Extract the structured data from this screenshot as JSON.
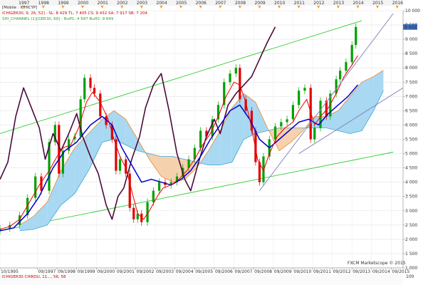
{
  "chart_data": {
    "type": "line",
    "title": "",
    "xlabel": "",
    "ylabel": "",
    "legend_placement": "top-left",
    "grid": true,
    "ylim": [
      1000,
      10000
    ],
    "xlim": [
      1995.8,
      2016.3
    ],
    "y_ticks": [
      1000,
      1500,
      2000,
      2500,
      3000,
      3500,
      4000,
      4500,
      5000,
      5500,
      6000,
      6500,
      7000,
      7500,
      8000,
      8500,
      9000,
      9500,
      10000
    ],
    "y_tick_labels": [
      "1 000",
      "1 500",
      "2 000",
      "2 500",
      "3 000",
      "3 500",
      "4 000",
      "4 500",
      "5 000",
      "5 500",
      "6 000",
      "6 500",
      "7 000",
      "7 500",
      "8 000",
      "8 500",
      "9 000",
      "9 500",
      "10 000"
    ],
    "top_year_ticks": [
      1997,
      1998,
      1999,
      2000,
      2001,
      2002,
      2003,
      2004,
      2005,
      2006,
      2007,
      2008,
      2009,
      2010,
      2011,
      2012,
      2013,
      2014,
      2015,
      2016
    ],
    "bottom_ticks": [
      {
        "x": 1995.8,
        "label": "10/1995"
      },
      {
        "x": 1997.7,
        "label": "09/1997"
      },
      {
        "x": 1998.7,
        "label": "09/1998"
      },
      {
        "x": 1999.7,
        "label": "09/1999"
      },
      {
        "x": 2000.7,
        "label": "09/2000"
      },
      {
        "x": 2001.7,
        "label": "09/2001"
      },
      {
        "x": 2002.7,
        "label": "09/2002"
      },
      {
        "x": 2003.7,
        "label": "09/2003"
      },
      {
        "x": 2004.7,
        "label": "09/2004"
      },
      {
        "x": 2005.7,
        "label": "09/2005"
      },
      {
        "x": 2006.7,
        "label": "09/2006"
      },
      {
        "x": 2007.7,
        "label": "09/2007"
      },
      {
        "x": 2008.7,
        "label": "09/2008"
      },
      {
        "x": 2009.7,
        "label": "09/2009"
      },
      {
        "x": 2010.7,
        "label": "09/2010"
      },
      {
        "x": 2011.7,
        "label": "09/2011"
      },
      {
        "x": 2012.7,
        "label": "09/2012"
      },
      {
        "x": 2013.7,
        "label": "09/2013"
      },
      {
        "x": 2014.7,
        "label": "09/2014"
      },
      {
        "x": 2015.7,
        "label": "09/2015"
      }
    ],
    "legend": [
      {
        "text": "[Mobile : ICHICYP]",
        "color": "#222222"
      },
      {
        "text": "ICHIGER30, 9, 26, 52]  -  SL: 8 429  TL: 7 405  CS: 9 432  SA: 7 917  SB: 7 204",
        "color": "#cc0000"
      },
      {
        "text": "SHI_CHANNEL (1)[GER30, 60]  -  Buff1: 4 697  Buff2: 9 649",
        "color": "#22aa22"
      }
    ],
    "last_price": 9432,
    "last_price_label": "9 432",
    "price_badge_color": "#3a6ec0",
    "colors": {
      "up": "#00a000",
      "down": "#e00000",
      "tenkan": "#ee0000",
      "kijun": "#0000cc",
      "chikou": "#4b0a3c",
      "cloud_bull": "#a9d8f2",
      "cloud_bull_edge": "#38a6d8",
      "cloud_bear": "#f6d1ad",
      "cloud_bear_edge": "#ee8a2e",
      "channel": "#33cc33",
      "trend": "#8888bb"
    },
    "candles": [
      [
        1995.8,
        2300,
        2380
      ],
      [
        1996.3,
        2380,
        2500
      ],
      [
        1996.8,
        2500,
        2840
      ],
      [
        1997.2,
        2840,
        3450
      ],
      [
        1997.6,
        3450,
        4200
      ],
      [
        1997.9,
        4200,
        3700
      ],
      [
        1998.3,
        3700,
        5400
      ],
      [
        1998.6,
        5400,
        6000
      ],
      [
        1998.8,
        6000,
        4300
      ],
      [
        1999.0,
        4300,
        5100
      ],
      [
        1999.3,
        5100,
        5500
      ],
      [
        1999.6,
        5500,
        5600
      ],
      [
        1999.9,
        5600,
        6900
      ],
      [
        2000.1,
        6900,
        7650
      ],
      [
        2000.4,
        7650,
        7300
      ],
      [
        2000.6,
        7300,
        7100
      ],
      [
        2000.9,
        7100,
        6300
      ],
      [
        2001.2,
        6300,
        6000
      ],
      [
        2001.5,
        6000,
        5500
      ],
      [
        2001.7,
        5500,
        4400
      ],
      [
        2001.9,
        4400,
        4800
      ],
      [
        2002.2,
        4800,
        4300
      ],
      [
        2002.4,
        4300,
        3100
      ],
      [
        2002.6,
        3100,
        2700
      ],
      [
        2002.8,
        2700,
        2900
      ],
      [
        2003.0,
        2900,
        2600
      ],
      [
        2003.3,
        2600,
        3300
      ],
      [
        2003.6,
        3300,
        3700
      ],
      [
        2003.9,
        3700,
        4000
      ],
      [
        2004.2,
        4000,
        3900
      ],
      [
        2004.5,
        3900,
        4000
      ],
      [
        2004.8,
        4000,
        4200
      ],
      [
        2005.1,
        4200,
        4500
      ],
      [
        2005.4,
        4500,
        4800
      ],
      [
        2005.7,
        4800,
        5200
      ],
      [
        2006.0,
        5200,
        5800
      ],
      [
        2006.3,
        5800,
        5600
      ],
      [
        2006.6,
        5600,
        6200
      ],
      [
        2006.9,
        6200,
        6700
      ],
      [
        2007.2,
        6700,
        7500
      ],
      [
        2007.5,
        7500,
        7800
      ],
      [
        2007.8,
        7800,
        8000
      ],
      [
        2008.0,
        8000,
        6900
      ],
      [
        2008.3,
        6900,
        6500
      ],
      [
        2008.6,
        6500,
        5800
      ],
      [
        2008.8,
        5800,
        4700
      ],
      [
        2009.0,
        4700,
        4000
      ],
      [
        2009.2,
        4000,
        4900
      ],
      [
        2009.5,
        4900,
        5500
      ],
      [
        2009.8,
        5500,
        5950
      ],
      [
        2010.1,
        5950,
        6100
      ],
      [
        2010.4,
        6100,
        6200
      ],
      [
        2010.7,
        6200,
        6700
      ],
      [
        2011.0,
        6700,
        7200
      ],
      [
        2011.3,
        7200,
        7300
      ],
      [
        2011.6,
        7300,
        5500
      ],
      [
        2011.8,
        5500,
        5900
      ],
      [
        2012.1,
        5900,
        6850
      ],
      [
        2012.4,
        6850,
        6300
      ],
      [
        2012.6,
        6300,
        7100
      ],
      [
        2012.9,
        7100,
        7600
      ],
      [
        2013.1,
        7600,
        7900
      ],
      [
        2013.4,
        7900,
        8200
      ],
      [
        2013.7,
        8200,
        8800
      ],
      [
        2013.9,
        8800,
        9432
      ]
    ],
    "tenkan": [
      [
        1995.8,
        2350
      ],
      [
        1996.3,
        2450
      ],
      [
        1996.8,
        2700
      ],
      [
        1997.3,
        3300
      ],
      [
        1997.8,
        3900
      ],
      [
        1998.3,
        4400
      ],
      [
        1998.7,
        4900
      ],
      [
        1999.0,
        5200
      ],
      [
        1999.4,
        5300
      ],
      [
        1999.8,
        5900
      ],
      [
        2000.2,
        6800
      ],
      [
        2000.5,
        7150
      ],
      [
        2000.9,
        6800
      ],
      [
        2001.3,
        6200
      ],
      [
        2001.6,
        5500
      ],
      [
        2001.9,
        4900
      ],
      [
        2002.2,
        4500
      ],
      [
        2002.5,
        3700
      ],
      [
        2002.8,
        2900
      ],
      [
        2003.1,
        2700
      ],
      [
        2003.4,
        3000
      ],
      [
        2003.8,
        3500
      ],
      [
        2004.1,
        3800
      ],
      [
        2004.5,
        3900
      ],
      [
        2004.9,
        4100
      ],
      [
        2005.3,
        4400
      ],
      [
        2005.7,
        4800
      ],
      [
        2006.1,
        5300
      ],
      [
        2006.5,
        5700
      ],
      [
        2006.9,
        6300
      ],
      [
        2007.3,
        7000
      ],
      [
        2007.7,
        7500
      ],
      [
        2008.0,
        7400
      ],
      [
        2008.3,
        6800
      ],
      [
        2008.6,
        5900
      ],
      [
        2008.9,
        4800
      ],
      [
        2009.2,
        4400
      ],
      [
        2009.5,
        5000
      ],
      [
        2009.9,
        5600
      ],
      [
        2010.3,
        5900
      ],
      [
        2010.7,
        6100
      ],
      [
        2011.0,
        6500
      ],
      [
        2011.4,
        6900
      ],
      [
        2011.8,
        6000
      ],
      [
        2012.1,
        6300
      ],
      [
        2012.5,
        6600
      ],
      [
        2012.9,
        7100
      ],
      [
        2013.3,
        7700
      ],
      [
        2013.7,
        8100
      ],
      [
        2014.0,
        8429
      ]
    ],
    "kijun": [
      [
        1995.8,
        2300
      ],
      [
        1996.5,
        2400
      ],
      [
        1997.2,
        2900
      ],
      [
        1997.8,
        3500
      ],
      [
        1998.5,
        4500
      ],
      [
        1999.1,
        5100
      ],
      [
        1999.7,
        5400
      ],
      [
        2000.4,
        6000
      ],
      [
        2001.0,
        6300
      ],
      [
        2001.5,
        6000
      ],
      [
        2002.0,
        5200
      ],
      [
        2002.5,
        4600
      ],
      [
        2003.0,
        4000
      ],
      [
        2003.5,
        4100
      ],
      [
        2004.0,
        4000
      ],
      [
        2004.5,
        3900
      ],
      [
        2005.0,
        4100
      ],
      [
        2005.5,
        4400
      ],
      [
        2006.0,
        4900
      ],
      [
        2006.5,
        5500
      ],
      [
        2007.0,
        6000
      ],
      [
        2007.5,
        6500
      ],
      [
        2008.0,
        6700
      ],
      [
        2008.5,
        6200
      ],
      [
        2009.0,
        5500
      ],
      [
        2009.5,
        5200
      ],
      [
        2010.0,
        5500
      ],
      [
        2010.5,
        5800
      ],
      [
        2011.0,
        6100
      ],
      [
        2011.5,
        6200
      ],
      [
        2012.0,
        6000
      ],
      [
        2012.5,
        6400
      ],
      [
        2013.0,
        6700
      ],
      [
        2013.5,
        7000
      ],
      [
        2014.0,
        7405
      ]
    ],
    "chikou": [
      [
        1995.8,
        4100
      ],
      [
        1996.2,
        4700
      ],
      [
        1996.6,
        6300
      ],
      [
        1997.0,
        7300
      ],
      [
        1997.4,
        6600
      ],
      [
        1997.8,
        5900
      ],
      [
        1998.1,
        4800
      ],
      [
        1998.5,
        5700
      ],
      [
        1998.9,
        5100
      ],
      [
        1999.3,
        5700
      ],
      [
        1999.7,
        6400
      ],
      [
        2000.0,
        5600
      ],
      [
        2000.4,
        4900
      ],
      [
        2000.8,
        4300
      ],
      [
        2001.2,
        3200
      ],
      [
        2001.5,
        2700
      ],
      [
        2001.8,
        3500
      ],
      [
        2002.1,
        3800
      ],
      [
        2002.5,
        4800
      ],
      [
        2002.9,
        5600
      ],
      [
        2003.2,
        6600
      ],
      [
        2003.6,
        7400
      ],
      [
        2004.0,
        7800
      ],
      [
        2004.4,
        6500
      ],
      [
        2004.8,
        5000
      ],
      [
        2005.2,
        4100
      ],
      [
        2005.5,
        3700
      ],
      [
        2005.9,
        4700
      ],
      [
        2006.3,
        5600
      ],
      [
        2006.7,
        6200
      ],
      [
        2007.0,
        5700
      ],
      [
        2007.4,
        6700
      ],
      [
        2007.8,
        7100
      ],
      [
        2008.2,
        7400
      ],
      [
        2008.6,
        7700
      ],
      [
        2009.0,
        8300
      ],
      [
        2009.4,
        8900
      ],
      [
        2009.8,
        9432
      ]
    ],
    "senkou_a": [
      [
        1996.8,
        2500
      ],
      [
        1997.5,
        2800
      ],
      [
        1998.2,
        3300
      ],
      [
        1998.9,
        4400
      ],
      [
        1999.6,
        5200
      ],
      [
        2000.3,
        5700
      ],
      [
        2001.0,
        6200
      ],
      [
        2001.6,
        6500
      ],
      [
        2002.2,
        6200
      ],
      [
        2002.8,
        5500
      ],
      [
        2003.4,
        4800
      ],
      [
        2004.0,
        4200
      ],
      [
        2004.6,
        4000
      ],
      [
        2005.2,
        4100
      ],
      [
        2005.8,
        4500
      ],
      [
        2006.4,
        5100
      ],
      [
        2007.0,
        5800
      ],
      [
        2007.6,
        6600
      ],
      [
        2008.2,
        7100
      ],
      [
        2008.8,
        6800
      ],
      [
        2009.4,
        5900
      ],
      [
        2010.0,
        5100
      ],
      [
        2010.6,
        5400
      ],
      [
        2011.2,
        5800
      ],
      [
        2011.8,
        6300
      ],
      [
        2012.4,
        6300
      ],
      [
        2013.0,
        6500
      ],
      [
        2013.6,
        7000
      ],
      [
        2014.2,
        7500
      ],
      [
        2014.8,
        7700
      ],
      [
        2015.3,
        7917
      ]
    ],
    "senkou_b": [
      [
        1996.8,
        2300
      ],
      [
        1997.5,
        2350
      ],
      [
        1998.2,
        2500
      ],
      [
        1998.9,
        3200
      ],
      [
        1999.6,
        3600
      ],
      [
        2000.3,
        4400
      ],
      [
        2001.0,
        5400
      ],
      [
        2001.6,
        5500
      ],
      [
        2002.2,
        5300
      ],
      [
        2002.8,
        5100
      ],
      [
        2003.4,
        5000
      ],
      [
        2004.0,
        4900
      ],
      [
        2004.6,
        4900
      ],
      [
        2005.2,
        4800
      ],
      [
        2005.8,
        4700
      ],
      [
        2006.4,
        4600
      ],
      [
        2007.0,
        4600
      ],
      [
        2007.6,
        4700
      ],
      [
        2008.2,
        5500
      ],
      [
        2008.8,
        5700
      ],
      [
        2009.4,
        5800
      ],
      [
        2010.0,
        5900
      ],
      [
        2010.6,
        5900
      ],
      [
        2011.2,
        5900
      ],
      [
        2011.8,
        5900
      ],
      [
        2012.4,
        5900
      ],
      [
        2013.0,
        5800
      ],
      [
        2013.6,
        5700
      ],
      [
        2014.2,
        5800
      ],
      [
        2014.8,
        6500
      ],
      [
        2015.3,
        7204
      ]
    ],
    "channel_lines": [
      {
        "name": "Buff1",
        "points": [
          [
            1995.8,
            2300
          ],
          [
            2015.8,
            5050
          ]
        ]
      },
      {
        "name": "Buff2",
        "points": [
          [
            1995.8,
            5700
          ],
          [
            2014.2,
            9649
          ]
        ]
      }
    ],
    "trend_lines": [
      {
        "points": [
          [
            2009.0,
            3700
          ],
          [
            2015.8,
            9900
          ]
        ]
      },
      {
        "points": [
          [
            2011.0,
            5000
          ],
          [
            2016.3,
            7300
          ]
        ]
      }
    ],
    "footer_text": "FXCM Marketscope © 2015",
    "indicator_label": "ICHIGER30 CHIKOU, 11..., 56, 58",
    "indicator_scale": "100"
  }
}
